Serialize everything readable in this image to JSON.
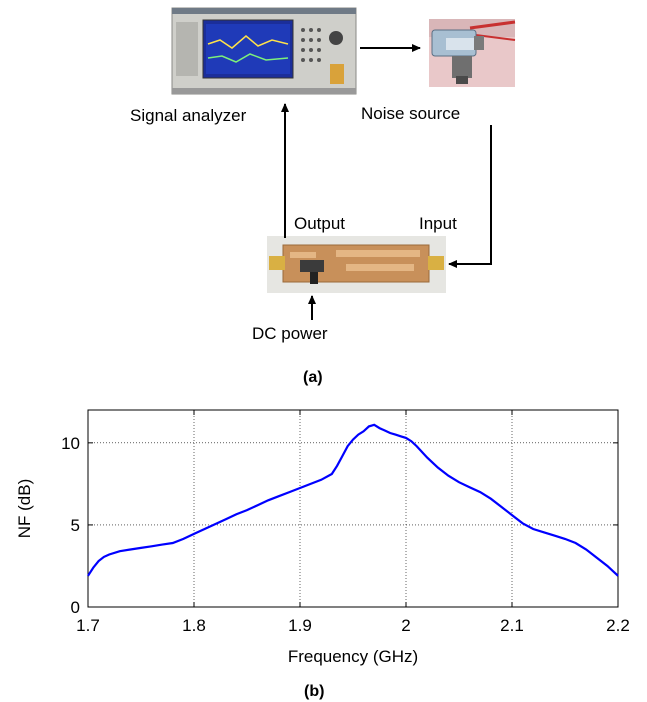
{
  "diagram": {
    "signal_analyzer": "Signal analyzer",
    "noise_source": "Noise source",
    "output": "Output",
    "input": "Input",
    "dc_power": "DC power",
    "caption_a": "(a)"
  },
  "chart_data": {
    "type": "line",
    "xlabel": "Frequency (GHz)",
    "ylabel": "NF (dB)",
    "xlim": [
      1.7,
      2.2
    ],
    "ylim": [
      0,
      12
    ],
    "xticks": [
      1.7,
      1.8,
      1.9,
      2.0,
      2.1,
      2.2
    ],
    "xtick_labels": [
      "1.7",
      "1.8",
      "1.9",
      "2",
      "2.1",
      "2.2"
    ],
    "yticks": [
      0,
      5,
      10
    ],
    "ytick_labels": [
      "0",
      "5",
      "10"
    ],
    "grid": true,
    "color": "#0000ff",
    "series": [
      {
        "x": [
          1.7,
          1.705,
          1.71,
          1.715,
          1.72,
          1.73,
          1.74,
          1.75,
          1.76,
          1.77,
          1.78,
          1.79,
          1.8,
          1.81,
          1.82,
          1.83,
          1.84,
          1.85,
          1.86,
          1.87,
          1.88,
          1.89,
          1.9,
          1.91,
          1.92,
          1.93,
          1.935,
          1.94,
          1.945,
          1.95,
          1.955,
          1.96,
          1.965,
          1.97,
          1.975,
          1.98,
          1.985,
          1.99,
          1.995,
          2.0,
          2.005,
          2.01,
          2.02,
          2.03,
          2.04,
          2.05,
          2.06,
          2.07,
          2.08,
          2.09,
          2.1,
          2.11,
          2.12,
          2.13,
          2.14,
          2.15,
          2.16,
          2.17,
          2.18,
          2.19,
          2.2
        ],
        "y": [
          1.9,
          2.4,
          2.8,
          3.05,
          3.2,
          3.4,
          3.5,
          3.6,
          3.7,
          3.8,
          3.9,
          4.15,
          4.45,
          4.75,
          5.05,
          5.35,
          5.65,
          5.9,
          6.2,
          6.5,
          6.75,
          7.0,
          7.25,
          7.5,
          7.75,
          8.1,
          8.6,
          9.2,
          9.8,
          10.2,
          10.5,
          10.7,
          11.0,
          11.1,
          10.9,
          10.75,
          10.6,
          10.5,
          10.4,
          10.3,
          10.1,
          9.8,
          9.1,
          8.5,
          8.0,
          7.6,
          7.3,
          7.0,
          6.6,
          6.1,
          5.6,
          5.1,
          4.75,
          4.55,
          4.35,
          4.15,
          3.9,
          3.5,
          3.0,
          2.5,
          1.9
        ]
      }
    ],
    "caption_b": "(b)"
  },
  "colors": {
    "arrow": "#000000",
    "pcb": "#c8905a",
    "analyzer_body": "#c9c9c4",
    "noise_source": "#b7c9d8"
  }
}
